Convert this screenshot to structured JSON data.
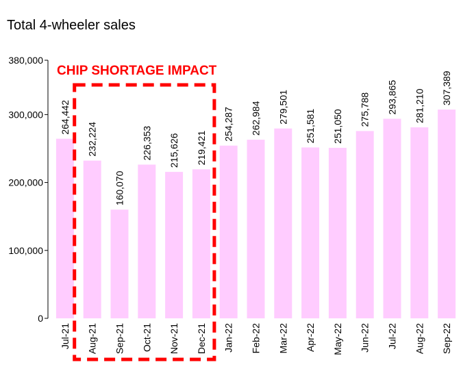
{
  "chart_data": {
    "type": "bar",
    "title": "Total 4-wheeler sales",
    "categories": [
      "Jul-21",
      "Aug-21",
      "Sep-21",
      "Oct-21",
      "Nov-21",
      "Dec-21",
      "Jan-22",
      "Feb-22",
      "Mar-22",
      "Apr-22",
      "May-22",
      "Jun-22",
      "Jul-22",
      "Aug-22",
      "Sep-22"
    ],
    "values": [
      264442,
      232224,
      160070,
      226353,
      215626,
      219421,
      254287,
      262984,
      279501,
      251581,
      251050,
      275788,
      293865,
      281210,
      307389
    ],
    "value_labels": [
      "264,442",
      "232,224",
      "160,070",
      "226,353",
      "215,626",
      "219,421",
      "254,287",
      "262,984",
      "279,501",
      "251,581",
      "251,050",
      "275,788",
      "293,865",
      "281,210",
      "307,389"
    ],
    "y_ticks": [
      0,
      100000,
      200000,
      300000,
      380000
    ],
    "y_tick_labels": [
      "0",
      "100,000",
      "200,000",
      "300,000",
      "380,000"
    ],
    "ylim": [
      0,
      380000
    ],
    "bar_color": "#FFCCFF",
    "grid": false,
    "annotation": {
      "text": "CHIP SHORTAGE IMPACT",
      "color": "#FF0000",
      "covers": [
        "Aug-21",
        "Dec-21"
      ]
    }
  }
}
